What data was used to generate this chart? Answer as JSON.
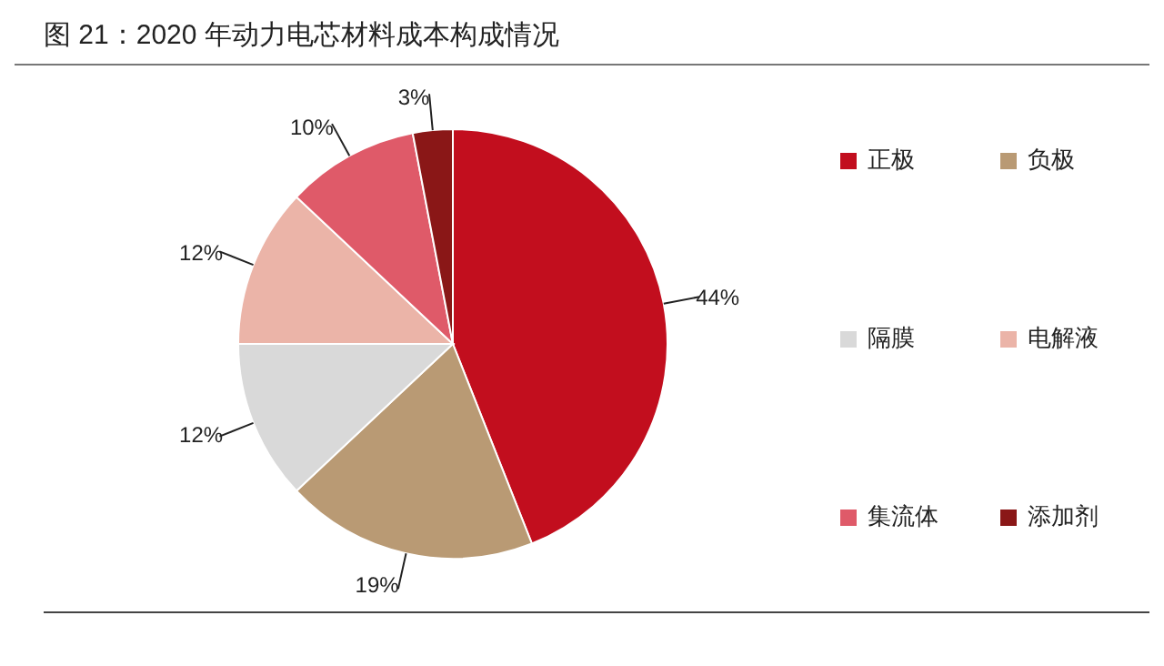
{
  "chart_data": {
    "type": "pie",
    "title": "图 21：2020 年动力电芯材料成本构成情况",
    "categories": [
      "正极",
      "负极",
      "隔膜",
      "电解液",
      "集流体",
      "添加剂"
    ],
    "values": [
      44,
      19,
      12,
      12,
      10,
      3
    ],
    "value_labels": [
      "44%",
      "19%",
      "12%",
      "12%",
      "10%",
      "3%"
    ],
    "colors": [
      "#c20e1e",
      "#b99a74",
      "#d9d9d9",
      "#ebb4a8",
      "#df5a69",
      "#8a1717"
    ],
    "legend": "right"
  }
}
